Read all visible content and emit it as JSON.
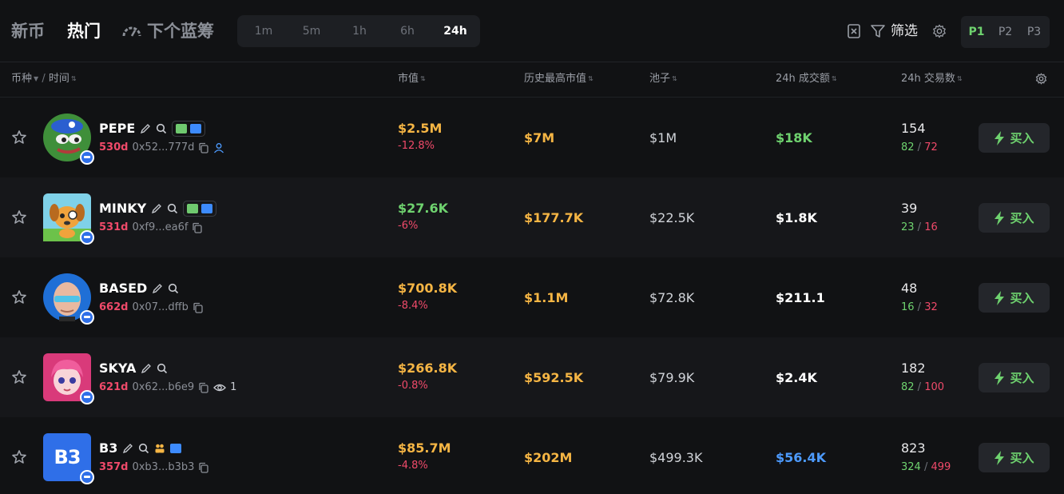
{
  "nav": {
    "tabs": [
      {
        "label": "新币",
        "active": false
      },
      {
        "label": "热门",
        "active": true
      },
      {
        "label": "下个蓝筹",
        "active": false
      }
    ]
  },
  "timeframes": [
    {
      "label": "1m",
      "active": false
    },
    {
      "label": "5m",
      "active": false
    },
    {
      "label": "1h",
      "active": false
    },
    {
      "label": "6h",
      "active": false
    },
    {
      "label": "24h",
      "active": true
    }
  ],
  "toolbar": {
    "filter_label": "筛选",
    "pages": [
      {
        "label": "P1",
        "active": true
      },
      {
        "label": "P2",
        "active": false
      },
      {
        "label": "P3",
        "active": false
      }
    ]
  },
  "columns": {
    "token": "币种",
    "time": "时间",
    "mcap": "市值",
    "ath": "历史最高市值",
    "pool": "池子",
    "volume": "24h 成交额",
    "txns": "24h 交易数"
  },
  "buy_label": "买入",
  "colors": {
    "accent_green": "#6fd36f",
    "loss_red": "#f04a6a",
    "gold": "#f5b544",
    "volume_blue": "#4d9bff"
  },
  "rows": [
    {
      "symbol": "PEPE",
      "age": "530d",
      "address": "0x52...777d",
      "mcap": "$2.5M",
      "change": "-12.8%",
      "ath": "$7M",
      "pool": "$1M",
      "volume": "$18K",
      "txns": "154",
      "buys": "82",
      "sells": "72"
    },
    {
      "symbol": "MINKY",
      "age": "531d",
      "address": "0xf9...ea6f",
      "mcap": "$27.6K",
      "change": "-6%",
      "ath": "$177.7K",
      "pool": "$22.5K",
      "volume": "$1.8K",
      "txns": "39",
      "buys": "23",
      "sells": "16"
    },
    {
      "symbol": "BASED",
      "age": "662d",
      "address": "0x07...dffb",
      "mcap": "$700.8K",
      "change": "-8.4%",
      "ath": "$1.1M",
      "pool": "$72.8K",
      "volume": "$211.1",
      "txns": "48",
      "buys": "16",
      "sells": "32"
    },
    {
      "symbol": "SKYA",
      "age": "621d",
      "address": "0x62...b6e9",
      "watchers": "1",
      "mcap": "$266.8K",
      "change": "-0.8%",
      "ath": "$592.5K",
      "pool": "$79.9K",
      "volume": "$2.4K",
      "txns": "182",
      "buys": "82",
      "sells": "100"
    },
    {
      "symbol": "B3",
      "age": "357d",
      "address": "0xb3...b3b3",
      "avatar_text": "B3",
      "mcap": "$85.7M",
      "change": "-4.8%",
      "ath": "$202M",
      "pool": "$499.3K",
      "volume": "$56.4K",
      "txns": "823",
      "buys": "324",
      "sells": "499"
    }
  ]
}
